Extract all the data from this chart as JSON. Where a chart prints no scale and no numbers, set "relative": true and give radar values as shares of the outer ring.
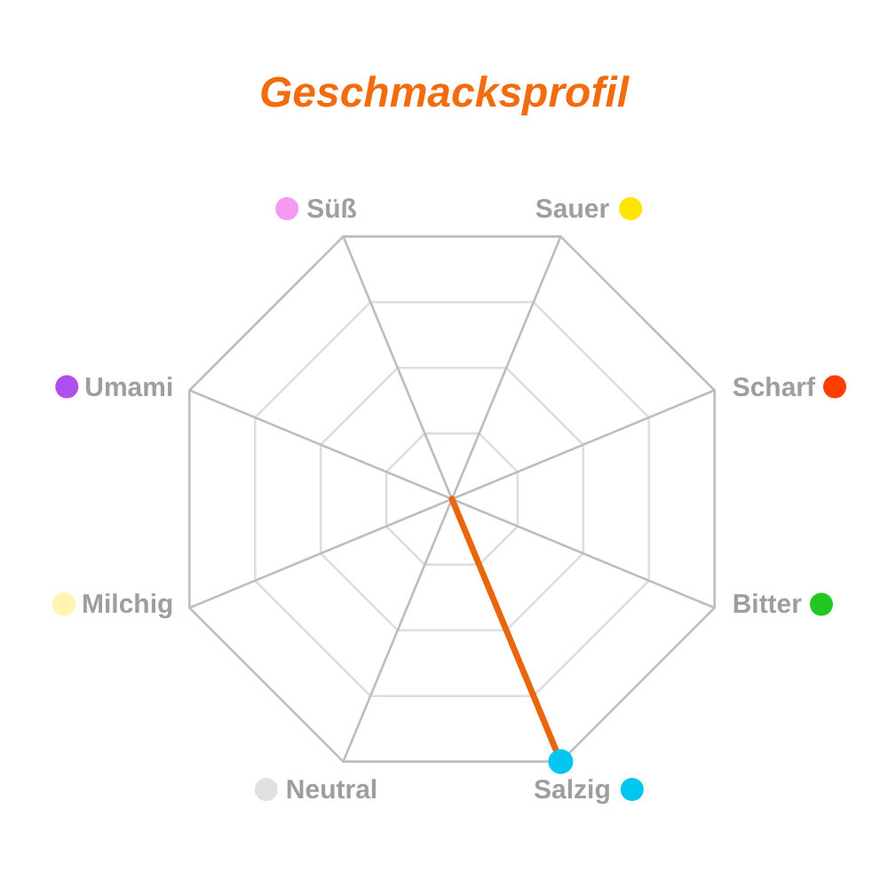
{
  "chart_data": {
    "type": "radar",
    "title": "Geschmacksprofil",
    "categories": [
      "Sauer",
      "Scharf",
      "Bitter",
      "Salzig",
      "Neutral",
      "Milchig",
      "Umami",
      "Süß"
    ],
    "colors": [
      "#ffe600",
      "#ff3d00",
      "#22c722",
      "#00c6f0",
      "#e0e0e0",
      "#fff4b0",
      "#b04ef0",
      "#f59af0"
    ],
    "relative": true,
    "grid": true,
    "marker": "circle",
    "series": [
      {
        "color": "#e8660e",
        "values": [
          0,
          0,
          0,
          1,
          0,
          0,
          0,
          0
        ]
      }
    ]
  }
}
